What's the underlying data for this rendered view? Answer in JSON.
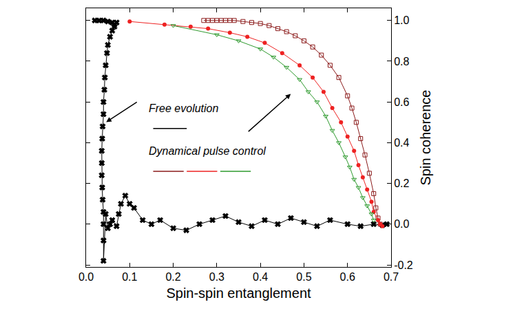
{
  "chart_data": {
    "type": "line",
    "x_label": "Spin-spin entanglement",
    "y_label": "Spin coherence",
    "annotations": [
      "Free evolution",
      "Dynamical pulse control"
    ],
    "xlim": [
      0,
      0.7
    ],
    "xticks": [
      {
        "value": 0,
        "label": "0.0"
      },
      0.1,
      0.2,
      0.3,
      0.4,
      0.5,
      0.6,
      0.7
    ],
    "ylim": [
      -0.21,
      1.06
    ],
    "yticks": [
      -0.2,
      {
        "value": 0,
        "label": "0.0"
      },
      0.2,
      0.4,
      0.6,
      0.8,
      {
        "value": 1,
        "label": "1.0"
      }
    ],
    "grid": false,
    "series": [
      {
        "color": "#000000",
        "marker": "x",
        "x": [
          0.02,
          0.03,
          0.04,
          0.05,
          0.06,
          0.065,
          0.07,
          0.065,
          0.06,
          0.055,
          0.05,
          0.048,
          0.045,
          0.043,
          0.042,
          0.04,
          0.04,
          0.038,
          0.037,
          0.036,
          0.036,
          0.036,
          0.037,
          0.038,
          0.04,
          0.04,
          0.04,
          0.04,
          0.045,
          0.05,
          0.055,
          0.06,
          0.07,
          0.075,
          0.08,
          0.09,
          0.1,
          0.11,
          0.13,
          0.15,
          0.17,
          0.2,
          0.23,
          0.26,
          0.29,
          0.32,
          0.35,
          0.38,
          0.41,
          0.44,
          0.47,
          0.5,
          0.53,
          0.56,
          0.6,
          0.63,
          0.66,
          0.68,
          0.69
        ],
        "values": [
          1.0,
          1.0,
          1.0,
          0.995,
          0.99,
          0.98,
          0.99,
          0.97,
          0.95,
          0.92,
          0.88,
          0.84,
          0.78,
          0.72,
          0.66,
          0.6,
          0.54,
          0.48,
          0.42,
          0.36,
          0.3,
          0.24,
          0.18,
          0.12,
          0.06,
          0.0,
          -0.08,
          -0.18,
          0.05,
          -0.02,
          0.0,
          0.02,
          -0.01,
          0.05,
          0.1,
          0.14,
          0.1,
          0.08,
          0.02,
          0.0,
          0.02,
          -0.02,
          -0.03,
          0.0,
          0.02,
          0.04,
          0.01,
          -0.01,
          0.02,
          0.0,
          0.03,
          0.01,
          -0.01,
          0.02,
          0.0,
          -0.01,
          0.0,
          -0.005,
          0.0
        ]
      },
      {
        "color": "#8b1a1a",
        "marker": "square-open",
        "x": [
          0.27,
          0.28,
          0.29,
          0.3,
          0.31,
          0.32,
          0.33,
          0.34,
          0.36,
          0.38,
          0.4,
          0.42,
          0.44,
          0.46,
          0.48,
          0.5,
          0.52,
          0.54,
          0.56,
          0.58,
          0.6,
          0.61,
          0.62,
          0.63,
          0.64,
          0.65,
          0.66,
          0.665,
          0.67,
          0.675
        ],
        "values": [
          1.0,
          1.0,
          1.0,
          1.0,
          1.0,
          1.0,
          1.0,
          1.0,
          0.995,
          0.99,
          0.985,
          0.975,
          0.96,
          0.945,
          0.925,
          0.9,
          0.87,
          0.83,
          0.78,
          0.72,
          0.63,
          0.57,
          0.5,
          0.42,
          0.34,
          0.25,
          0.15,
          0.08,
          0.03,
          0.0
        ]
      },
      {
        "color": "#ee2222",
        "marker": "circle",
        "x": [
          0.1,
          0.18,
          0.24,
          0.28,
          0.33,
          0.37,
          0.41,
          0.45,
          0.49,
          0.52,
          0.545,
          0.565,
          0.585,
          0.6,
          0.615,
          0.625,
          0.635,
          0.645,
          0.655,
          0.66,
          0.67,
          0.675,
          0.68
        ],
        "values": [
          0.995,
          0.98,
          0.97,
          0.96,
          0.94,
          0.92,
          0.89,
          0.84,
          0.78,
          0.72,
          0.65,
          0.57,
          0.5,
          0.43,
          0.36,
          0.29,
          0.23,
          0.17,
          0.11,
          0.06,
          0.02,
          0.0,
          -0.01
        ]
      },
      {
        "color": "#2e9a2e",
        "marker": "triangle-down-open",
        "x": [
          0.2,
          0.3,
          0.35,
          0.4,
          0.43,
          0.46,
          0.49,
          0.51,
          0.53,
          0.55,
          0.565,
          0.58,
          0.595,
          0.605,
          0.615,
          0.625,
          0.635,
          0.645,
          0.655,
          0.66
        ],
        "values": [
          0.975,
          0.93,
          0.9,
          0.86,
          0.82,
          0.77,
          0.71,
          0.65,
          0.6,
          0.53,
          0.46,
          0.4,
          0.33,
          0.28,
          0.22,
          0.18,
          0.13,
          0.09,
          0.05,
          0.02
        ]
      }
    ]
  }
}
